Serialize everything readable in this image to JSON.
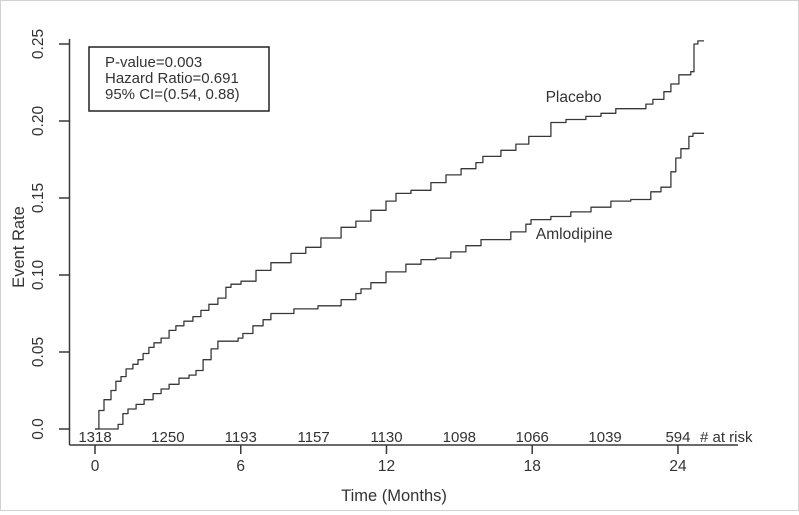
{
  "figure": {
    "background": "#ffffff",
    "border_color": "#d2d2d2",
    "line_color": "#383838",
    "text_color": "#333333"
  },
  "chart_data": {
    "type": "line",
    "subtype": "step-kaplan-meier",
    "title": "",
    "xlabel": "Time (Months)",
    "ylabel": "Event Rate",
    "xlim": [
      0,
      25.5
    ],
    "ylim": [
      0,
      0.25
    ],
    "grid": "off",
    "x_ticks": [
      0,
      6,
      12,
      18,
      24
    ],
    "y_ticks": [
      {
        "v": 0.0,
        "label": "0.0"
      },
      {
        "v": 0.05,
        "label": "0.05"
      },
      {
        "v": 0.1,
        "label": "0.10"
      },
      {
        "v": 0.15,
        "label": "0.15"
      },
      {
        "v": 0.2,
        "label": "0.20"
      },
      {
        "v": 0.25,
        "label": "0.25"
      }
    ],
    "annotation_box": {
      "lines": [
        "P-value=0.003",
        "Hazard Ratio=0.691",
        "95% CI=(0.54, 0.88)"
      ]
    },
    "at_risk": {
      "label": "# at risk",
      "times": [
        0,
        3,
        6,
        9,
        12,
        15,
        18,
        21,
        24
      ],
      "counts": [
        1318,
        1250,
        1193,
        1157,
        1130,
        1098,
        1066,
        1039,
        594
      ]
    },
    "series": [
      {
        "name": "Placebo",
        "label_pos": {
          "month": 18.55,
          "rate": 0.2125
        },
        "points": [
          [
            0,
            0
          ],
          [
            0.16,
            0.012
          ],
          [
            0.37,
            0.019
          ],
          [
            0.66,
            0.025
          ],
          [
            0.86,
            0.031
          ],
          [
            1.07,
            0.034
          ],
          [
            1.28,
            0.039
          ],
          [
            1.56,
            0.042
          ],
          [
            1.77,
            0.045
          ],
          [
            1.98,
            0.049
          ],
          [
            2.22,
            0.053
          ],
          [
            2.43,
            0.056
          ],
          [
            2.72,
            0.059
          ],
          [
            3.05,
            0.064
          ],
          [
            3.33,
            0.067
          ],
          [
            3.66,
            0.07
          ],
          [
            4.03,
            0.073
          ],
          [
            4.36,
            0.077
          ],
          [
            4.69,
            0.081
          ],
          [
            5.06,
            0.085
          ],
          [
            5.39,
            0.092
          ],
          [
            5.6,
            0.094
          ],
          [
            6.01,
            0.096
          ],
          [
            6.63,
            0.103
          ],
          [
            7.24,
            0.108
          ],
          [
            8.07,
            0.114
          ],
          [
            8.68,
            0.118
          ],
          [
            9.3,
            0.124
          ],
          [
            10.13,
            0.131
          ],
          [
            10.74,
            0.135
          ],
          [
            11.36,
            0.142
          ],
          [
            11.98,
            0.148
          ],
          [
            12.39,
            0.153
          ],
          [
            13.01,
            0.155
          ],
          [
            13.83,
            0.16
          ],
          [
            14.45,
            0.165
          ],
          [
            15.07,
            0.169
          ],
          [
            15.68,
            0.173
          ],
          [
            15.97,
            0.177
          ],
          [
            16.71,
            0.181
          ],
          [
            17.33,
            0.185
          ],
          [
            17.86,
            0.19
          ],
          [
            18.77,
            0.199
          ],
          [
            19.39,
            0.201
          ],
          [
            20.21,
            0.203
          ],
          [
            20.83,
            0.205
          ],
          [
            21.44,
            0.208
          ],
          [
            22.68,
            0.211
          ],
          [
            22.97,
            0.214
          ],
          [
            23.42,
            0.219
          ],
          [
            23.71,
            0.224
          ],
          [
            24.04,
            0.23
          ],
          [
            24.53,
            0.232
          ],
          [
            24.66,
            0.25
          ],
          [
            24.82,
            0.252
          ],
          [
            25.07,
            0.252
          ]
        ]
      },
      {
        "name": "Amlodipine",
        "label_pos": {
          "month": 18.15,
          "rate": 0.1235
        },
        "points": [
          [
            0,
            0
          ],
          [
            0.95,
            0.003
          ],
          [
            1.15,
            0.01
          ],
          [
            1.36,
            0.013
          ],
          [
            1.69,
            0.016
          ],
          [
            2.02,
            0.019
          ],
          [
            2.39,
            0.023
          ],
          [
            2.72,
            0.026
          ],
          [
            3.05,
            0.029
          ],
          [
            3.46,
            0.033
          ],
          [
            3.87,
            0.035
          ],
          [
            4.16,
            0.038
          ],
          [
            4.45,
            0.045
          ],
          [
            4.78,
            0.052
          ],
          [
            5.06,
            0.057
          ],
          [
            5.89,
            0.059
          ],
          [
            6.09,
            0.062
          ],
          [
            6.5,
            0.067
          ],
          [
            6.92,
            0.071
          ],
          [
            7.24,
            0.075
          ],
          [
            8.19,
            0.078
          ],
          [
            9.18,
            0.08
          ],
          [
            10.13,
            0.084
          ],
          [
            10.74,
            0.088
          ],
          [
            10.95,
            0.091
          ],
          [
            11.36,
            0.095
          ],
          [
            11.98,
            0.102
          ],
          [
            12.8,
            0.107
          ],
          [
            13.42,
            0.11
          ],
          [
            14.04,
            0.111
          ],
          [
            14.65,
            0.115
          ],
          [
            15.27,
            0.119
          ],
          [
            15.89,
            0.123
          ],
          [
            17.12,
            0.128
          ],
          [
            17.74,
            0.133
          ],
          [
            17.95,
            0.136
          ],
          [
            18.77,
            0.138
          ],
          [
            19.59,
            0.141
          ],
          [
            20.42,
            0.144
          ],
          [
            21.24,
            0.148
          ],
          [
            22.06,
            0.149
          ],
          [
            22.88,
            0.154
          ],
          [
            23.3,
            0.157
          ],
          [
            23.71,
            0.167
          ],
          [
            23.91,
            0.176
          ],
          [
            24.12,
            0.182
          ],
          [
            24.45,
            0.19
          ],
          [
            24.62,
            0.192
          ],
          [
            25.07,
            0.192
          ]
        ]
      }
    ]
  }
}
